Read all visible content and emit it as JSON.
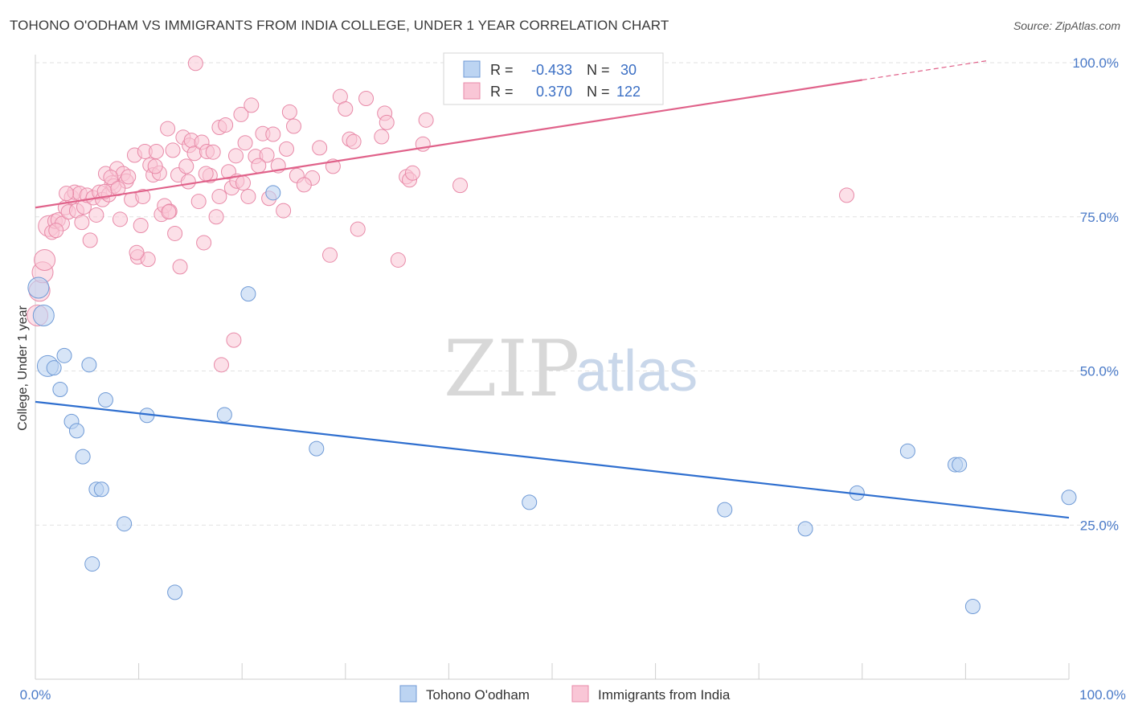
{
  "title": "TOHONO O'ODHAM VS IMMIGRANTS FROM INDIA COLLEGE, UNDER 1 YEAR CORRELATION CHART",
  "source": "Source: ZipAtlas.com",
  "watermark": {
    "zip": "ZIP",
    "atlas": "atlas"
  },
  "legend": {
    "r_label": "R =",
    "n_label": "N =",
    "rows": [
      {
        "r": "-0.433",
        "n": "30",
        "color": "#a9c6ee"
      },
      {
        "r": "0.370",
        "n": "122",
        "color": "#f5b3c8"
      }
    ]
  },
  "bottom_legend": [
    "Tohono O'odham",
    "Immigrants from India"
  ],
  "colors": {
    "blue_fill": "#bcd4f2",
    "blue_stroke": "#6f9ad6",
    "blue_line": "#2f6fcf",
    "pink_fill": "#f9c6d6",
    "pink_stroke": "#e88aa8",
    "pink_line": "#e0628a",
    "tick_text": "#4a7ac8",
    "grid": "#e2e2e2"
  },
  "chart_data": {
    "type": "scatter",
    "title": "TOHONO O'ODHAM VS IMMIGRANTS FROM INDIA COLLEGE, UNDER 1 YEAR CORRELATION CHART",
    "xlabel": "",
    "ylabel": "College, Under 1 year",
    "xlim": [
      0,
      100
    ],
    "ylim": [
      0,
      100
    ],
    "x_tick_labels": [
      "0.0%",
      "100.0%"
    ],
    "y_ticks": [
      25,
      50,
      75,
      100
    ],
    "y_tick_labels": [
      "25.0%",
      "50.0%",
      "75.0%",
      "100.0%"
    ],
    "grid": true,
    "legend_position": "top-center",
    "series": [
      {
        "name": "Tohono O'odham",
        "r": -0.433,
        "n": 30,
        "trend": {
          "x": [
            0,
            100
          ],
          "y": [
            45,
            26.2
          ]
        },
        "points": [
          [
            0.3,
            63.5
          ],
          [
            0.8,
            59.0
          ],
          [
            1.2,
            50.8
          ],
          [
            1.8,
            50.5
          ],
          [
            2.4,
            47.0
          ],
          [
            2.8,
            52.5
          ],
          [
            3.5,
            41.8
          ],
          [
            4.0,
            40.3
          ],
          [
            4.6,
            36.1
          ],
          [
            5.2,
            51.0
          ],
          [
            5.5,
            18.7
          ],
          [
            5.9,
            30.8
          ],
          [
            6.4,
            30.8
          ],
          [
            6.8,
            45.3
          ],
          [
            8.6,
            25.2
          ],
          [
            10.8,
            42.8
          ],
          [
            13.5,
            14.1
          ],
          [
            18.3,
            42.9
          ],
          [
            20.6,
            62.5
          ],
          [
            23.0,
            78.9
          ],
          [
            27.2,
            37.4
          ],
          [
            47.8,
            28.7
          ],
          [
            66.7,
            27.5
          ],
          [
            74.5,
            24.4
          ],
          [
            79.5,
            30.2
          ],
          [
            84.4,
            37.0
          ],
          [
            89.0,
            34.8
          ],
          [
            89.4,
            34.8
          ],
          [
            90.7,
            11.8
          ],
          [
            100.0,
            29.5
          ]
        ]
      },
      {
        "name": "Immigrants from India",
        "r": 0.37,
        "n": 122,
        "trend": {
          "x": [
            0,
            80
          ],
          "y": [
            76.5,
            97.2
          ]
        },
        "trend_dashed": {
          "x": [
            80,
            92
          ],
          "y": [
            97.2,
            100.3
          ]
        },
        "points": [
          [
            0.2,
            59.0
          ],
          [
            0.4,
            63.0
          ],
          [
            0.7,
            66.0
          ],
          [
            0.9,
            68.0
          ],
          [
            1.3,
            73.5
          ],
          [
            1.6,
            72.5
          ],
          [
            1.9,
            74.3
          ],
          [
            2.2,
            74.5
          ],
          [
            2.6,
            73.9
          ],
          [
            2.9,
            76.5
          ],
          [
            3.2,
            75.8
          ],
          [
            3.5,
            78.2
          ],
          [
            3.8,
            79.0
          ],
          [
            4.0,
            76.0
          ],
          [
            4.3,
            78.8
          ],
          [
            4.7,
            76.6
          ],
          [
            5.0,
            78.5
          ],
          [
            5.3,
            71.2
          ],
          [
            5.6,
            78.1
          ],
          [
            5.9,
            75.3
          ],
          [
            6.2,
            79.0
          ],
          [
            6.5,
            77.8
          ],
          [
            6.8,
            82.0
          ],
          [
            7.1,
            78.6
          ],
          [
            7.4,
            80.5
          ],
          [
            7.6,
            80.0
          ],
          [
            7.9,
            82.8
          ],
          [
            8.2,
            74.6
          ],
          [
            8.5,
            82.0
          ],
          [
            8.8,
            80.8
          ],
          [
            9.0,
            81.5
          ],
          [
            9.3,
            77.8
          ],
          [
            9.6,
            85.0
          ],
          [
            9.9,
            68.5
          ],
          [
            10.2,
            73.6
          ],
          [
            10.4,
            78.3
          ],
          [
            10.6,
            85.6
          ],
          [
            10.9,
            68.1
          ],
          [
            11.1,
            83.4
          ],
          [
            11.4,
            81.8
          ],
          [
            11.7,
            85.6
          ],
          [
            12.0,
            82.1
          ],
          [
            12.2,
            75.4
          ],
          [
            12.5,
            76.8
          ],
          [
            12.8,
            89.3
          ],
          [
            13.0,
            75.9
          ],
          [
            13.3,
            85.8
          ],
          [
            13.5,
            72.3
          ],
          [
            13.8,
            81.8
          ],
          [
            14.0,
            66.9
          ],
          [
            14.3,
            87.9
          ],
          [
            14.6,
            83.2
          ],
          [
            14.9,
            86.6
          ],
          [
            15.1,
            87.4
          ],
          [
            15.4,
            85.3
          ],
          [
            15.8,
            77.5
          ],
          [
            16.1,
            87.1
          ],
          [
            16.3,
            70.8
          ],
          [
            16.6,
            85.6
          ],
          [
            16.9,
            81.7
          ],
          [
            17.2,
            85.5
          ],
          [
            17.5,
            75.0
          ],
          [
            17.8,
            89.5
          ],
          [
            18.0,
            51.0
          ],
          [
            18.4,
            89.9
          ],
          [
            18.7,
            82.3
          ],
          [
            19.0,
            79.7
          ],
          [
            19.2,
            55.0
          ],
          [
            19.5,
            80.8
          ],
          [
            19.9,
            91.6
          ],
          [
            20.3,
            87.0
          ],
          [
            20.6,
            78.3
          ],
          [
            20.9,
            93.1
          ],
          [
            21.3,
            84.8
          ],
          [
            22.0,
            88.5
          ],
          [
            22.6,
            78.0
          ],
          [
            23.0,
            88.4
          ],
          [
            23.5,
            83.3
          ],
          [
            24.0,
            76.0
          ],
          [
            24.3,
            86.0
          ],
          [
            24.6,
            92.0
          ],
          [
            25.0,
            89.7
          ],
          [
            25.3,
            81.7
          ],
          [
            26.8,
            81.3
          ],
          [
            27.5,
            86.2
          ],
          [
            28.5,
            68.8
          ],
          [
            28.8,
            83.2
          ],
          [
            29.5,
            94.5
          ],
          [
            30.0,
            92.5
          ],
          [
            30.4,
            87.6
          ],
          [
            31.2,
            73.0
          ],
          [
            32.0,
            94.2
          ],
          [
            33.5,
            88.0
          ],
          [
            33.8,
            91.8
          ],
          [
            34.0,
            90.3
          ],
          [
            35.1,
            68.0
          ],
          [
            35.9,
            81.5
          ],
          [
            36.2,
            81.0
          ],
          [
            37.5,
            86.8
          ],
          [
            37.8,
            90.7
          ],
          [
            41.1,
            80.1
          ],
          [
            78.5,
            78.5
          ],
          [
            15.5,
            99.9
          ],
          [
            6.7,
            79.1
          ],
          [
            2.0,
            72.8
          ],
          [
            9.8,
            69.2
          ],
          [
            11.6,
            83.2
          ],
          [
            7.3,
            81.4
          ],
          [
            8.0,
            79.6
          ],
          [
            3.0,
            78.8
          ],
          [
            4.5,
            74.1
          ],
          [
            12.9,
            75.8
          ],
          [
            14.8,
            80.7
          ],
          [
            16.5,
            82.0
          ],
          [
            17.8,
            78.3
          ],
          [
            20.1,
            80.5
          ],
          [
            22.4,
            85.0
          ],
          [
            26.0,
            80.2
          ],
          [
            30.8,
            87.2
          ],
          [
            36.5,
            82.1
          ],
          [
            21.6,
            83.3
          ],
          [
            19.4,
            84.9
          ]
        ]
      }
    ]
  }
}
